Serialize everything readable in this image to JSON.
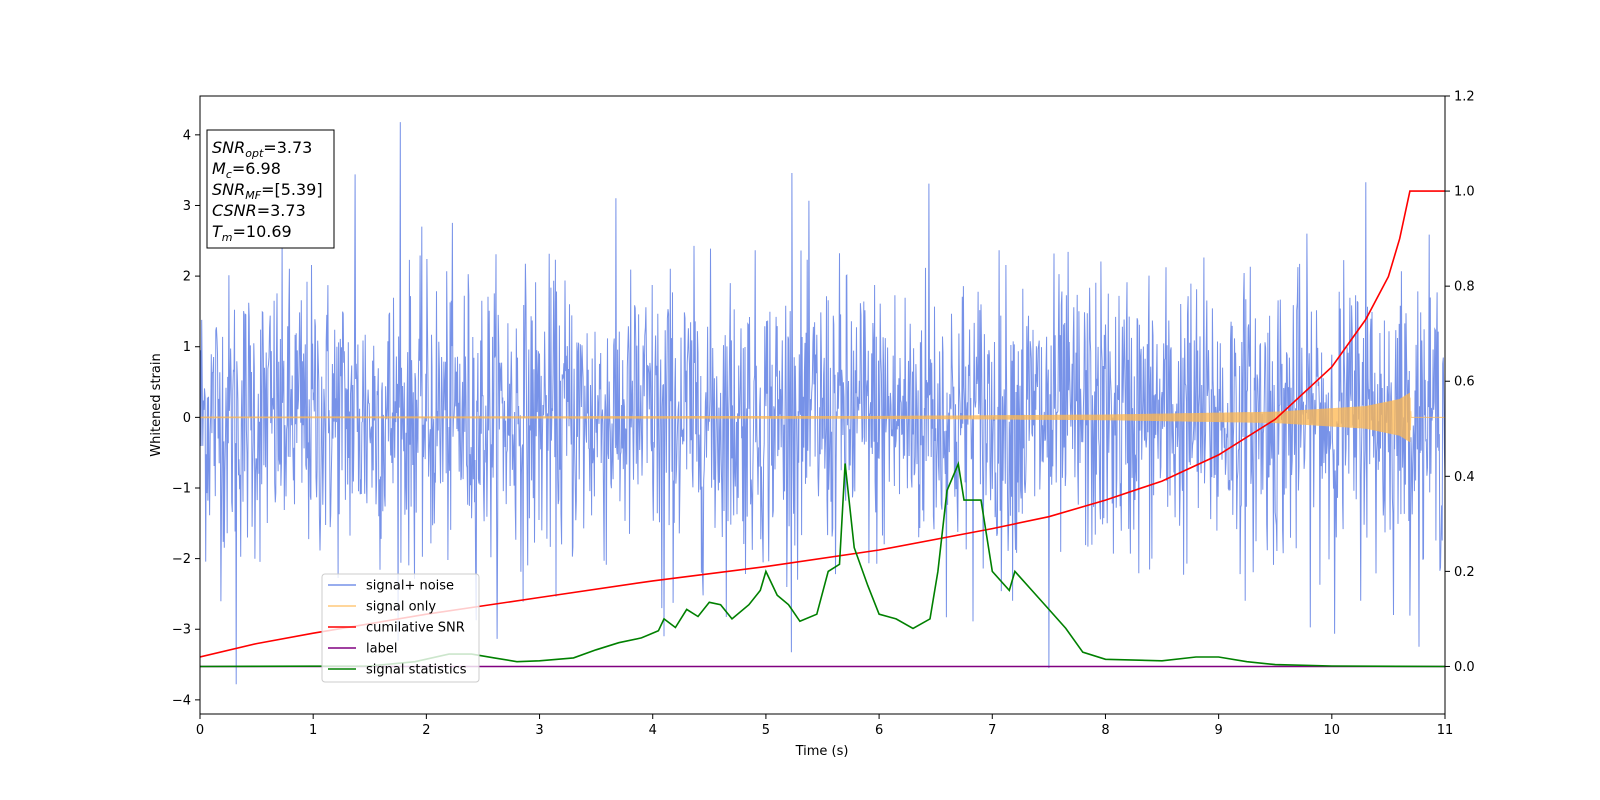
{
  "chart_data": {
    "type": "line",
    "xlabel": "Time (s)",
    "ylabel": "Whitened strain",
    "xlim": [
      0,
      11
    ],
    "ylim": [
      -4.2,
      4.55
    ],
    "y2lim": [
      -0.1,
      1.2
    ],
    "x_ticks": [
      "0",
      "1",
      "2",
      "3",
      "4",
      "5",
      "6",
      "7",
      "8",
      "9",
      "10",
      "11"
    ],
    "y_ticks": [
      "−4",
      "−3",
      "−2",
      "−1",
      "0",
      "1",
      "2",
      "3",
      "4"
    ],
    "y2_ticks": [
      "0.0",
      "0.2",
      "0.4",
      "0.6",
      "0.8",
      "1.0",
      "1.2"
    ],
    "info_box": [
      {
        "main": "SNR",
        "sub": "opt",
        "value": "=3.73"
      },
      {
        "main": "M",
        "sub": "c",
        "value": "=6.98"
      },
      {
        "main": "SNR",
        "sub": "MF",
        "value": "=[5.39]"
      },
      {
        "main": "CSNR",
        "sub": "",
        "value": "=3.73"
      },
      {
        "main": "T",
        "sub": "m",
        "value": "=10.69"
      }
    ],
    "legend": {
      "placement": "lower-left",
      "entries": [
        {
          "label": "signal+ noise",
          "color": "#4a6ee0"
        },
        {
          "label": "signal only",
          "color": "#ffb74d"
        },
        {
          "label": "cumilative SNR",
          "color": "#ff0000"
        },
        {
          "label": "label",
          "color": "#800080"
        },
        {
          "label": "signal statistics",
          "color": "#008000"
        }
      ]
    },
    "series": [
      {
        "name": "signal+ noise",
        "axis": "left",
        "color": "#4a6ee0",
        "description_envelope": {
          "typical_abs": 1.6,
          "max": 4.2,
          "min": -3.8
        },
        "spikes": [
          [
            0.32,
            -3.78
          ],
          [
            1.77,
            4.18
          ],
          [
            1.37,
            3.44
          ],
          [
            5.23,
            3.46
          ],
          [
            10.3,
            3.33
          ],
          [
            6.44,
            3.31
          ],
          [
            7.5,
            -3.55
          ],
          [
            4.1,
            -3.1
          ],
          [
            4.08,
            -2.7
          ]
        ]
      },
      {
        "name": "signal only",
        "axis": "left",
        "color": "#ffb74d",
        "amplitude_profile": [
          [
            0,
            0.01
          ],
          [
            6,
            0.02
          ],
          [
            8,
            0.04
          ],
          [
            9.5,
            0.08
          ],
          [
            10.3,
            0.16
          ],
          [
            10.6,
            0.26
          ],
          [
            10.69,
            0.35
          ],
          [
            10.7,
            0.0
          ],
          [
            11,
            0.0
          ]
        ]
      },
      {
        "name": "cumilative SNR",
        "axis": "right",
        "color": "#ff0000",
        "points": [
          [
            0,
            0.02
          ],
          [
            0.5,
            0.048
          ],
          [
            1,
            0.07
          ],
          [
            2,
            0.11
          ],
          [
            3,
            0.145
          ],
          [
            4,
            0.18
          ],
          [
            5,
            0.21
          ],
          [
            6,
            0.245
          ],
          [
            7,
            0.29
          ],
          [
            7.5,
            0.315
          ],
          [
            8,
            0.35
          ],
          [
            8.5,
            0.39
          ],
          [
            9,
            0.445
          ],
          [
            9.5,
            0.52
          ],
          [
            10,
            0.63
          ],
          [
            10.3,
            0.73
          ],
          [
            10.5,
            0.82
          ],
          [
            10.6,
            0.9
          ],
          [
            10.69,
            1.0
          ],
          [
            11,
            1.0
          ]
        ]
      },
      {
        "name": "label",
        "axis": "right",
        "color": "#800080",
        "points": [
          [
            0,
            0.0
          ],
          [
            11,
            0.0
          ]
        ]
      },
      {
        "name": "signal statistics",
        "axis": "right",
        "color": "#008000",
        "points": [
          [
            0,
            0.0
          ],
          [
            1.5,
            0.001
          ],
          [
            1.9,
            0.01
          ],
          [
            2.2,
            0.026
          ],
          [
            2.4,
            0.026
          ],
          [
            2.6,
            0.018
          ],
          [
            2.8,
            0.01
          ],
          [
            3.0,
            0.012
          ],
          [
            3.3,
            0.018
          ],
          [
            3.5,
            0.035
          ],
          [
            3.7,
            0.05
          ],
          [
            3.9,
            0.06
          ],
          [
            4.05,
            0.075
          ],
          [
            4.1,
            0.1
          ],
          [
            4.2,
            0.082
          ],
          [
            4.3,
            0.12
          ],
          [
            4.4,
            0.105
          ],
          [
            4.5,
            0.135
          ],
          [
            4.6,
            0.13
          ],
          [
            4.7,
            0.1
          ],
          [
            4.85,
            0.13
          ],
          [
            4.95,
            0.16
          ],
          [
            5.0,
            0.2
          ],
          [
            5.1,
            0.15
          ],
          [
            5.2,
            0.13
          ],
          [
            5.3,
            0.095
          ],
          [
            5.45,
            0.11
          ],
          [
            5.55,
            0.2
          ],
          [
            5.65,
            0.215
          ],
          [
            5.7,
            0.427
          ],
          [
            5.78,
            0.25
          ],
          [
            5.9,
            0.17
          ],
          [
            6.0,
            0.11
          ],
          [
            6.15,
            0.1
          ],
          [
            6.3,
            0.08
          ],
          [
            6.45,
            0.1
          ],
          [
            6.52,
            0.2
          ],
          [
            6.6,
            0.37
          ],
          [
            6.7,
            0.426
          ],
          [
            6.75,
            0.35
          ],
          [
            6.9,
            0.35
          ],
          [
            7.0,
            0.2
          ],
          [
            7.15,
            0.16
          ],
          [
            7.2,
            0.2
          ],
          [
            7.35,
            0.16
          ],
          [
            7.5,
            0.12
          ],
          [
            7.65,
            0.08
          ],
          [
            7.8,
            0.03
          ],
          [
            8.0,
            0.015
          ],
          [
            8.5,
            0.012
          ],
          [
            8.8,
            0.02
          ],
          [
            9.0,
            0.02
          ],
          [
            9.25,
            0.01
          ],
          [
            9.5,
            0.004
          ],
          [
            10,
            0.001
          ],
          [
            11,
            0.0
          ]
        ]
      }
    ]
  }
}
